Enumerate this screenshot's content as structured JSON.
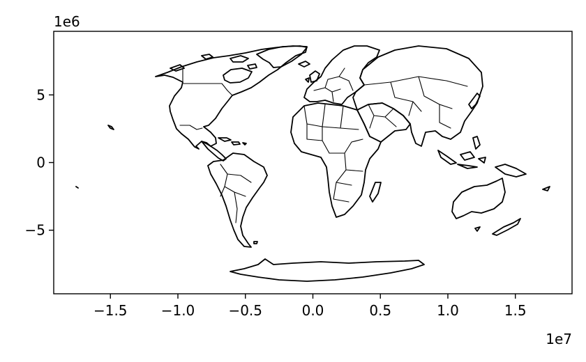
{
  "chart_data": {
    "type": "map",
    "projection": "equal-area world map",
    "xlim": [
      -19200000,
      19200000
    ],
    "ylim": [
      -9700000,
      9700000
    ],
    "x_ticks": [
      -15000000,
      -10000000,
      -5000000,
      0,
      5000000,
      10000000,
      15000000
    ],
    "x_tick_labels": [
      "−1.5",
      "−1.0",
      "−0.5",
      "0.0",
      "0.5",
      "1.0",
      "1.5"
    ],
    "x_offset_label": "1e7",
    "y_ticks": [
      5000000,
      0,
      -5000000
    ],
    "y_tick_labels": [
      "5",
      "0",
      "−5"
    ],
    "y_offset_label": "1e6",
    "grid": false,
    "line_color": "#000000",
    "face_color": "#ffffff",
    "regions": [
      "North America",
      "Greenland",
      "Central America",
      "Caribbean",
      "South America",
      "Europe",
      "Iceland",
      "Africa",
      "Madagascar",
      "Middle East",
      "Asia",
      "Japan",
      "Indonesia",
      "Philippines",
      "Papua New Guinea",
      "Australia",
      "New Zealand",
      "Antarctica",
      "Hawaii",
      "Falkland Islands"
    ]
  }
}
